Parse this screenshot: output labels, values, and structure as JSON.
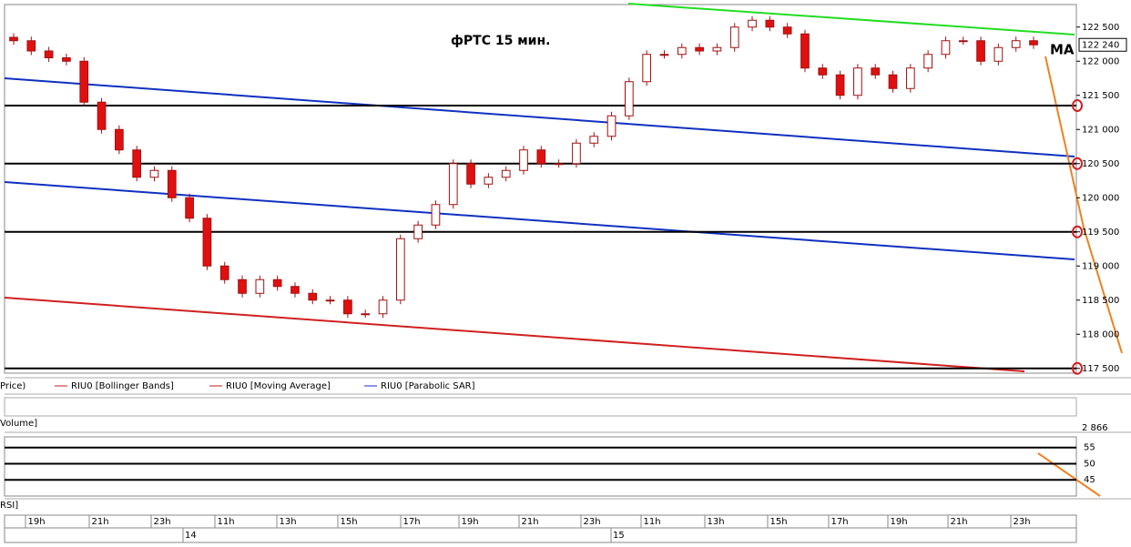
{
  "chart_data": {
    "type": "candlestick",
    "title": "фРТС   15 мин.",
    "open": [
      122350,
      122300,
      122150,
      122050,
      122000,
      121400,
      121000,
      120700,
      120300,
      120400,
      120000,
      119700,
      119000,
      118800,
      118600,
      118800,
      118700,
      118600,
      118500,
      118500,
      118300,
      118300,
      118500,
      119400,
      119600,
      119900,
      120500,
      120200,
      120300,
      120400,
      120700,
      120500,
      120500,
      120800,
      120900,
      121200,
      121700,
      122100,
      122100,
      122200,
      122150,
      122200,
      122500,
      122600,
      122500,
      122400,
      121900,
      121800,
      121500,
      121900,
      121800,
      121600,
      121900,
      122100,
      122300,
      122300,
      122000,
      122200,
      122300
    ],
    "high": [
      122410,
      122360,
      122210,
      122110,
      122060,
      121460,
      121060,
      120760,
      120460,
      120460,
      120060,
      119760,
      119060,
      118860,
      118860,
      118860,
      118760,
      118660,
      118560,
      118560,
      118360,
      118560,
      119460,
      119660,
      119960,
      120560,
      120560,
      120360,
      120460,
      120760,
      120760,
      120560,
      120860,
      120960,
      121260,
      121760,
      122160,
      122160,
      122260,
      122260,
      122260,
      122560,
      122660,
      122660,
      122560,
      122460,
      121960,
      121860,
      121960,
      121960,
      121860,
      121960,
      122160,
      122360,
      122360,
      122360,
      122260,
      122360,
      122360
    ],
    "low": [
      122240,
      122090,
      121990,
      121940,
      121340,
      120940,
      120640,
      120240,
      120240,
      119940,
      119640,
      118940,
      118740,
      118540,
      118540,
      118640,
      118540,
      118440,
      118440,
      118240,
      118240,
      118240,
      118440,
      119340,
      119540,
      119840,
      120140,
      120140,
      120240,
      120340,
      120440,
      120440,
      120440,
      120740,
      120840,
      121140,
      121640,
      122040,
      122040,
      122090,
      122090,
      122140,
      122440,
      122440,
      122340,
      121840,
      121740,
      121440,
      121440,
      121740,
      121540,
      121540,
      121840,
      122040,
      122240,
      121940,
      121940,
      122140,
      122180
    ],
    "close": [
      122300,
      122150,
      122050,
      122000,
      121400,
      121000,
      120700,
      120300,
      120400,
      120000,
      119700,
      119000,
      118800,
      118600,
      118800,
      118700,
      118600,
      118500,
      118500,
      118300,
      118300,
      118500,
      119400,
      119600,
      119900,
      120500,
      120200,
      120300,
      120400,
      120700,
      120500,
      120500,
      120800,
      120900,
      121200,
      121700,
      122100,
      122100,
      122200,
      122150,
      122200,
      122500,
      122600,
      122500,
      122400,
      121900,
      121800,
      121500,
      121900,
      121800,
      121600,
      121900,
      122100,
      122300,
      122300,
      122000,
      122200,
      122300,
      122240
    ],
    "last_price_label": "122 240",
    "ylim": [
      117430,
      122830
    ],
    "yticks": [
      {
        "value": 117500,
        "label": "117 500"
      },
      {
        "value": 118000,
        "label": "118 000"
      },
      {
        "value": 118500,
        "label": "118 500"
      },
      {
        "value": 119000,
        "label": "119 000"
      },
      {
        "value": 119500,
        "label": "119 500"
      },
      {
        "value": 120000,
        "label": "120 000"
      },
      {
        "value": 120500,
        "label": "120 500"
      },
      {
        "value": 121000,
        "label": "121 000"
      },
      {
        "value": 121500,
        "label": "121 500"
      },
      {
        "value": 122000,
        "label": "122 000"
      },
      {
        "value": 122500,
        "label": "122 500"
      }
    ],
    "levels": [
      121350,
      120500,
      119500,
      117500
    ],
    "annotation": "MA",
    "legend": [
      "Price)",
      "RIU0 [Bollinger Bands]",
      "RIU0 [Moving Average]",
      "RIU0 [Parabolic SAR]"
    ],
    "volume_label": "Volume]",
    "volume_value": "2 866",
    "rsi_label": "RSI]",
    "rsi_ylim": [
      40,
      58.3
    ],
    "rsi_yticks": [
      45,
      50,
      55
    ],
    "time_labels": [
      "19h",
      "21h",
      "23h",
      "11h",
      "13h",
      "15h",
      "17h",
      "19h",
      "21h",
      "23h",
      "11h",
      "13h",
      "15h",
      "17h",
      "19h",
      "21h",
      "23h"
    ],
    "date_labels": [
      "14",
      "15"
    ]
  }
}
